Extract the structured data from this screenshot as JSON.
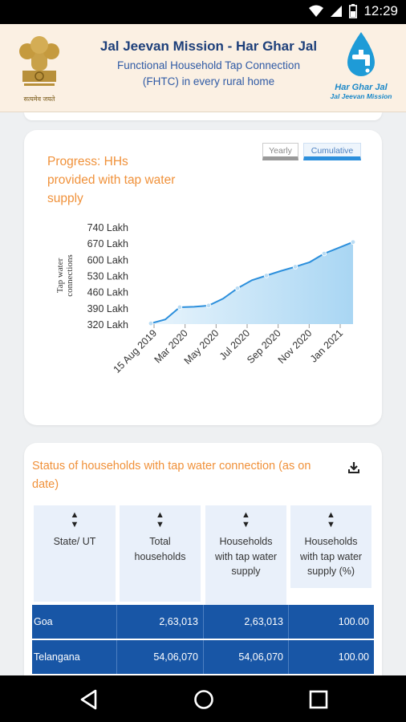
{
  "status_bar": {
    "time": "12:29",
    "icons": [
      "wifi-icon",
      "signal-icon",
      "battery-icon"
    ]
  },
  "header": {
    "title": "Jal Jeevan Mission - Har Ghar Jal",
    "subtitle_line1": "Functional Household Tap Connection",
    "subtitle_line2": "(FHTC) in every rural home",
    "emblem_caption": "सत्यमेव जयते",
    "logo_line1": "Har Ghar Jal",
    "logo_line2": "Jal Jeevan Mission"
  },
  "progress_card": {
    "title": "Progress: HHs provided with tap water supply",
    "toggle_yearly": "Yearly",
    "toggle_cumulative": "Cumulative",
    "selected_toggle": "Cumulative"
  },
  "chart_data": {
    "type": "area",
    "title": "Progress: HHs provided with tap water supply",
    "ylabel": "Tap water connections",
    "xlabel": "",
    "y_unit": "Lakh",
    "y_ticks": [
      "740 Lakh",
      "670 Lakh",
      "600 Lakh",
      "530 Lakh",
      "460 Lakh",
      "390 Lakh",
      "320 Lakh"
    ],
    "y_tick_values": [
      740,
      670,
      600,
      530,
      460,
      390,
      320
    ],
    "x_ticks": [
      "15 Aug 2019",
      "Mar 2020",
      "May 2020",
      "Jul 2020",
      "Sep 2020",
      "Nov 2020",
      "Jan 2021"
    ],
    "ylim": [
      320,
      740
    ],
    "x": [
      "2019-08-15",
      "2019-10",
      "2020-01",
      "2020-03",
      "2020-04",
      "2020-05",
      "2020-06",
      "2020-07",
      "2020-08",
      "2020-09",
      "2020-10",
      "2020-11",
      "2020-12",
      "2021-01",
      "2021-02"
    ],
    "values": [
      323,
      340,
      393,
      395,
      400,
      430,
      475,
      510,
      530,
      550,
      568,
      588,
      625,
      650,
      675
    ],
    "color": "#2c8fdc"
  },
  "status_card": {
    "title": "Status of households with tap water connection (as on date)",
    "columns": [
      "State/ UT",
      "Total households",
      "Households with tap water supply",
      "Households with tap water supply (%)"
    ],
    "rows": [
      {
        "state": "Goa",
        "total": "2,63,013",
        "with_tap": "2,63,013",
        "percent": "100.00"
      },
      {
        "state": "Telangana",
        "total": "54,06,070",
        "with_tap": "54,06,070",
        "percent": "100.00"
      }
    ]
  },
  "nav": {
    "back": "back-icon",
    "home": "home-icon",
    "recents": "recents-icon"
  }
}
